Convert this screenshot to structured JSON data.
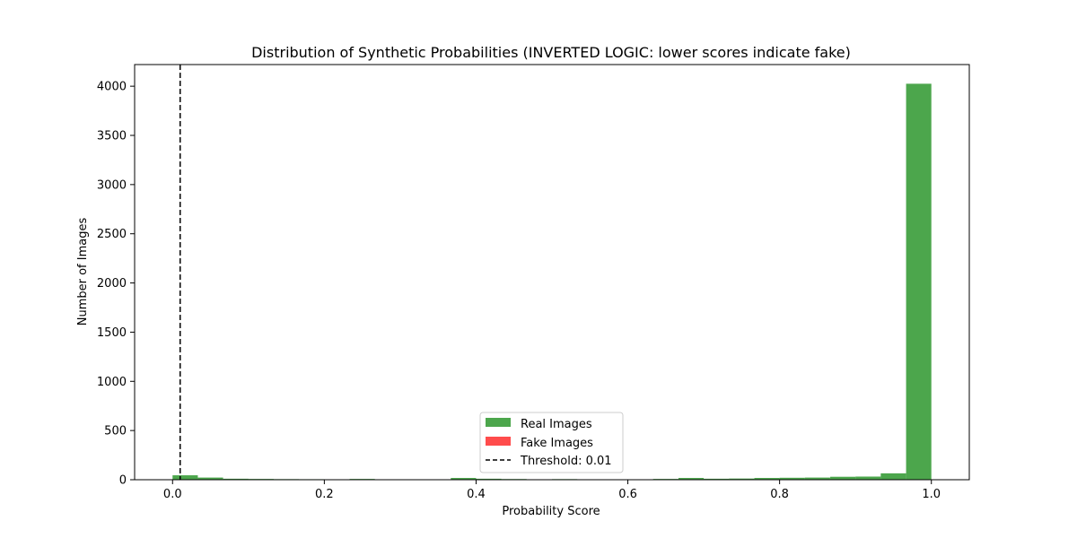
{
  "chart_data": {
    "type": "bar",
    "title": "Distribution of Synthetic Probabilities (INVERTED LOGIC: lower scores indicate fake)",
    "xlabel": "Probability Score",
    "ylabel": "Number of Images",
    "xlim": [
      -0.05,
      1.05
    ],
    "ylim": [
      0,
      4220
    ],
    "xticks": [
      0.0,
      0.2,
      0.4,
      0.6,
      0.8,
      1.0
    ],
    "xtick_labels": [
      "0.0",
      "0.2",
      "0.4",
      "0.6",
      "0.8",
      "1.0"
    ],
    "yticks": [
      0,
      500,
      1000,
      1500,
      2000,
      2500,
      3000,
      3500,
      4000
    ],
    "ytick_labels": [
      "0",
      "500",
      "1000",
      "1500",
      "2000",
      "2500",
      "3000",
      "3500",
      "4000"
    ],
    "grid": false,
    "legend_position": "lower-center",
    "bin_width": 0.0333,
    "series": [
      {
        "name": "Real Images",
        "color": "#008000",
        "alpha": 0.7,
        "bins": [
          {
            "start": 0.0,
            "value": 45
          },
          {
            "start": 0.0333,
            "value": 22
          },
          {
            "start": 0.0667,
            "value": 10
          },
          {
            "start": 0.1,
            "value": 8
          },
          {
            "start": 0.1333,
            "value": 6
          },
          {
            "start": 0.1667,
            "value": 5
          },
          {
            "start": 0.2333,
            "value": 8
          },
          {
            "start": 0.3667,
            "value": 18
          },
          {
            "start": 0.4,
            "value": 10
          },
          {
            "start": 0.4333,
            "value": 7
          },
          {
            "start": 0.5,
            "value": 6
          },
          {
            "start": 0.6333,
            "value": 8
          },
          {
            "start": 0.6667,
            "value": 18
          },
          {
            "start": 0.7,
            "value": 10
          },
          {
            "start": 0.7333,
            "value": 12
          },
          {
            "start": 0.7667,
            "value": 18
          },
          {
            "start": 0.8,
            "value": 20
          },
          {
            "start": 0.8333,
            "value": 22
          },
          {
            "start": 0.8667,
            "value": 30
          },
          {
            "start": 0.9,
            "value": 32
          },
          {
            "start": 0.9333,
            "value": 65
          },
          {
            "start": 0.9667,
            "value": 4025
          }
        ]
      },
      {
        "name": "Fake Images",
        "color": "#ff0000",
        "alpha": 0.7,
        "bins": []
      }
    ],
    "threshold": {
      "label": "Threshold: 0.01",
      "value": 0.01,
      "color": "#000000"
    }
  }
}
